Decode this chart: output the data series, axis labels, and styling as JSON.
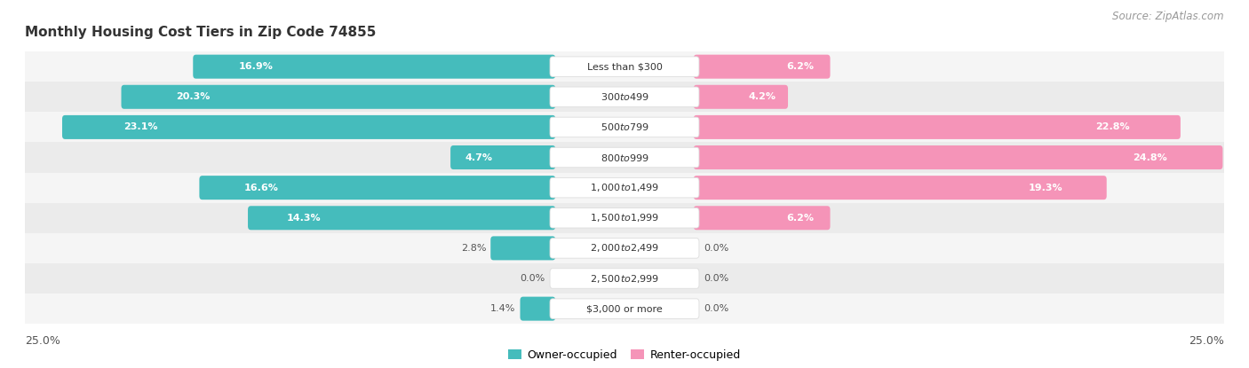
{
  "title": "Monthly Housing Cost Tiers in Zip Code 74855",
  "source": "Source: ZipAtlas.com",
  "categories": [
    "Less than $300",
    "$300 to $499",
    "$500 to $799",
    "$800 to $999",
    "$1,000 to $1,499",
    "$1,500 to $1,999",
    "$2,000 to $2,499",
    "$2,500 to $2,999",
    "$3,000 or more"
  ],
  "owner_values": [
    16.9,
    20.3,
    23.1,
    4.7,
    16.6,
    14.3,
    2.8,
    0.0,
    1.4
  ],
  "renter_values": [
    6.2,
    4.2,
    22.8,
    24.8,
    19.3,
    6.2,
    0.0,
    0.0,
    0.0
  ],
  "owner_color": "#45BCBC",
  "renter_color": "#F594B8",
  "owner_color_light": "#A8DEDE",
  "renter_color_light": "#FBCBDC",
  "row_bg_even": "#F5F5F5",
  "row_bg_odd": "#EBEBEB",
  "max_value": 25.0,
  "legend_owner": "Owner-occupied",
  "legend_renter": "Renter-occupied",
  "title_fontsize": 11,
  "source_fontsize": 8.5,
  "label_fontsize": 9,
  "category_fontsize": 8,
  "value_fontsize": 8
}
